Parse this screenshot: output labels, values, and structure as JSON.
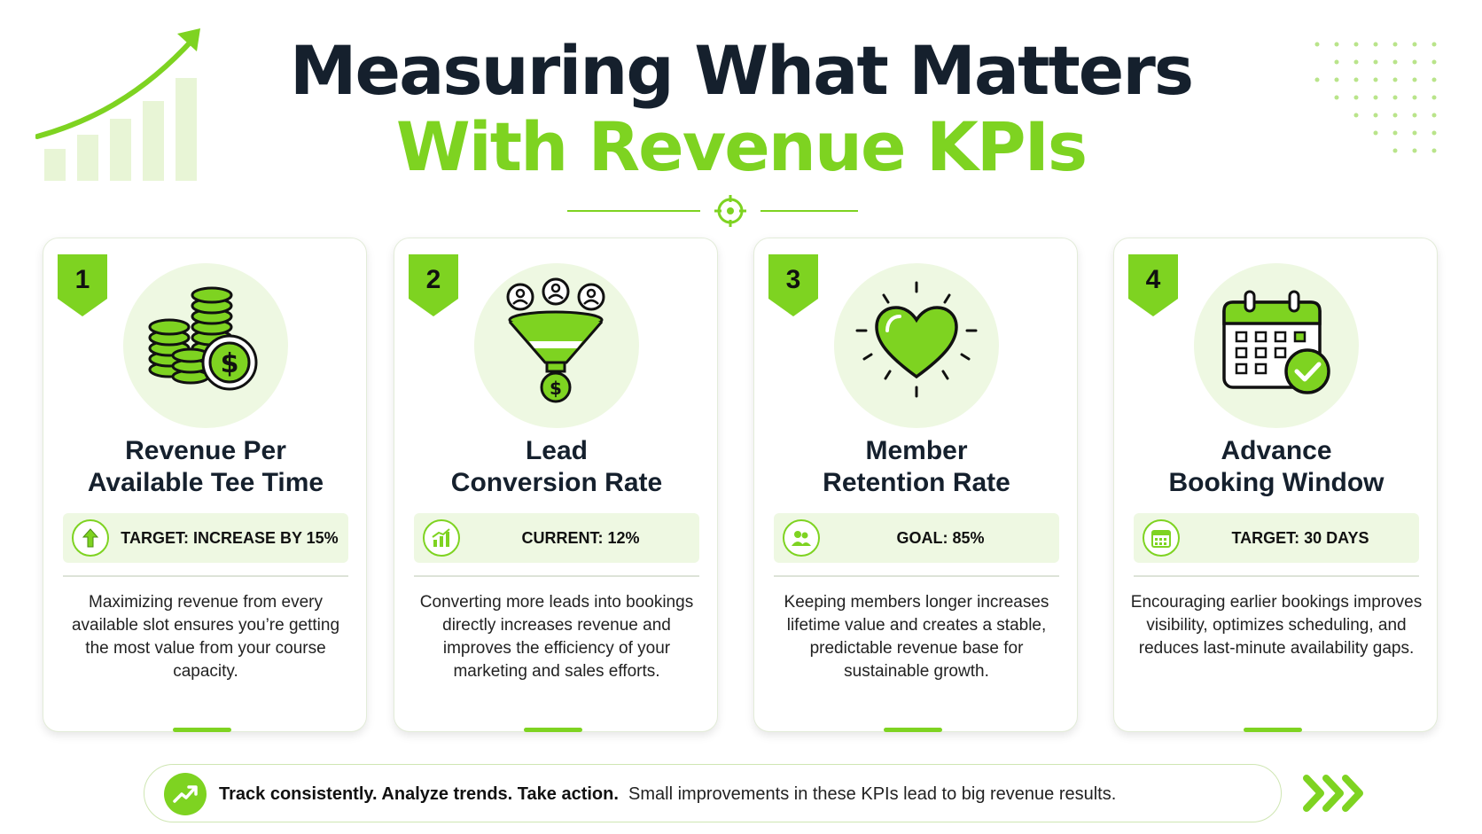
{
  "header": {
    "title_line1": "Measuring What Matters",
    "title_line2": "With Revenue KPIs"
  },
  "colors": {
    "accent": "#7ed321",
    "accent_light": "#eef8e2",
    "text_dark": "#15202d"
  },
  "cards": [
    {
      "number": "1",
      "icon": "coin-stacks-dollar-icon",
      "title_line1": "Revenue Per",
      "title_line2": "Available Tee Time",
      "pill_icon": "arrow-up-icon",
      "pill_text": "TARGET: INCREASE BY 15%",
      "description": "Maximizing revenue from every available slot ensures you’re getting the most value from your course capacity."
    },
    {
      "number": "2",
      "icon": "funnel-users-dollar-icon",
      "title_line1": "Lead",
      "title_line2": "Conversion Rate",
      "pill_icon": "bar-chart-icon",
      "pill_text": "CURRENT: 12%",
      "description": "Converting more leads into bookings directly increases revenue and improves the efficiency of your marketing and sales efforts."
    },
    {
      "number": "3",
      "icon": "heart-icon",
      "title_line1": "Member",
      "title_line2": "Retention Rate",
      "pill_icon": "users-icon",
      "pill_text": "GOAL: 85%",
      "description": "Keeping members longer increases lifetime value and creates a stable, predictable revenue base for sustainable growth."
    },
    {
      "number": "4",
      "icon": "calendar-check-icon",
      "title_line1": "Advance",
      "title_line2": "Booking Window",
      "pill_icon": "calendar-icon",
      "pill_text": "TARGET: 30 DAYS",
      "description": "Encouraging earlier bookings improves visibility, optimizes scheduling, and reduces last-minute availability gaps."
    }
  ],
  "footer": {
    "icon": "trend-up-icon",
    "bold_text": "Track consistently. Analyze trends. Take action.",
    "normal_text": "Small improvements in these KPIs lead to big revenue results.",
    "end_icon": "chevrons-right-icon"
  }
}
